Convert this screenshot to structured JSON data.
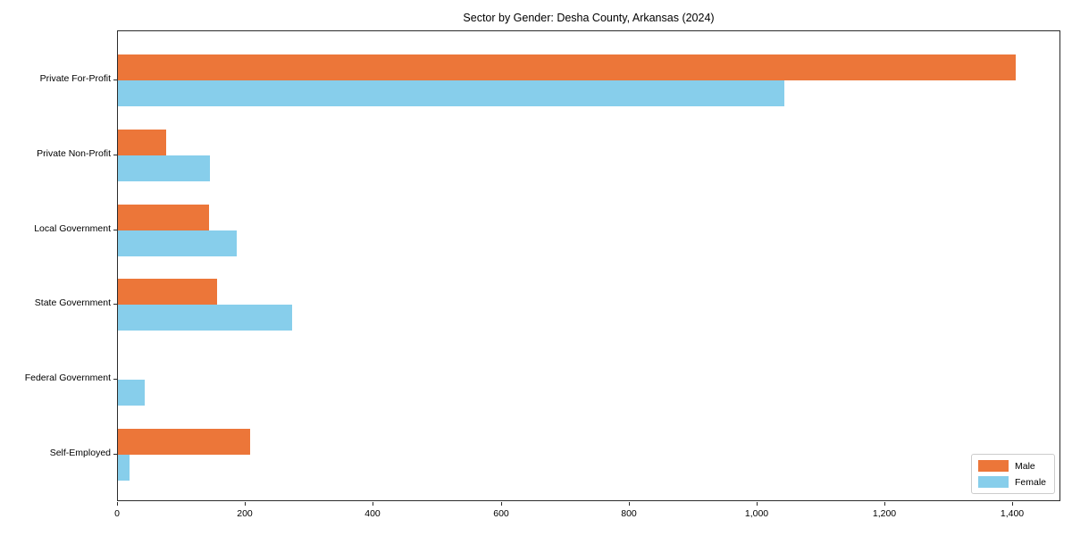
{
  "chart_data": {
    "type": "bar",
    "orientation": "horizontal",
    "title": "Sector by Gender: Desha County, Arkansas (2024)",
    "categories": [
      "Private For-Profit",
      "Private Non-Profit",
      "Local Government",
      "State Government",
      "Federal Government",
      "Self-Employed"
    ],
    "series": [
      {
        "name": "Male",
        "color": "#ec7639",
        "values": [
          1404,
          75,
          142,
          155,
          0,
          207
        ]
      },
      {
        "name": "Female",
        "color": "#87ceeb",
        "values": [
          1042,
          144,
          186,
          272,
          42,
          18
        ]
      }
    ],
    "xlim": [
      0,
      1475
    ],
    "xticks": [
      0,
      200,
      400,
      600,
      800,
      1000,
      1200,
      1400
    ],
    "xtick_labels": [
      "0",
      "200",
      "400",
      "600",
      "800",
      "1,000",
      "1,200",
      "1,400"
    ],
    "xlabel": "",
    "ylabel": "",
    "grid": false,
    "legend_position": "lower right",
    "axis_color": "#2b2b2b",
    "legend_border_color": "#cccccc"
  }
}
